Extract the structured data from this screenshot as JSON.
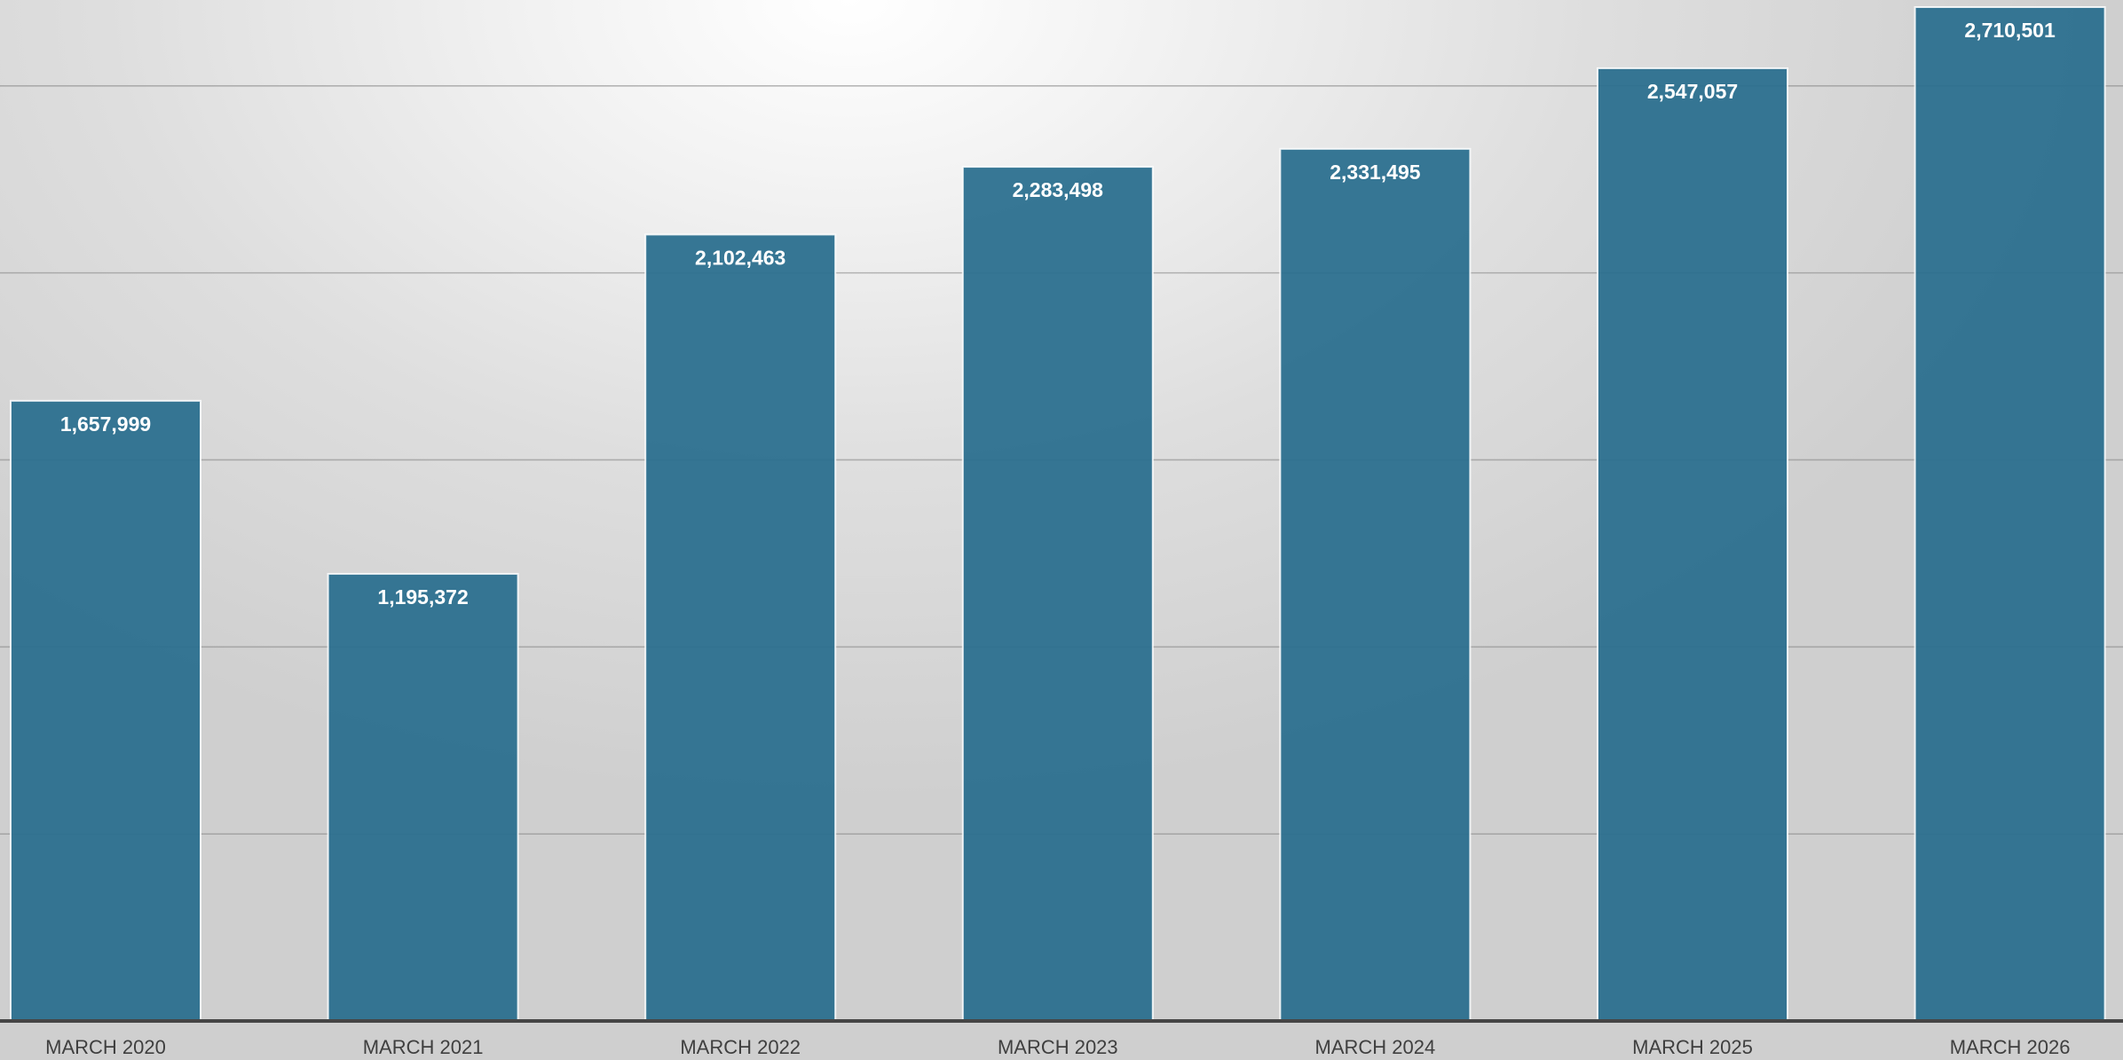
{
  "chart_data": {
    "type": "bar",
    "title": "",
    "xlabel": "",
    "ylabel": "",
    "categories": [
      "MARCH 2020",
      "MARCH 2021",
      "MARCH 2022",
      "MARCH 2023",
      "MARCH 2024",
      "MARCH 2025",
      "MARCH 2026"
    ],
    "values": [
      1657999,
      1195372,
      2102463,
      2283498,
      2331495,
      2547057,
      2710501
    ],
    "data_labels": [
      "1,657,999",
      "1,195,372",
      "2,102,463",
      "2,283,498",
      "2,331,495",
      "2,547,057",
      "2,710,501"
    ],
    "ylim": [
      0,
      2710501
    ],
    "y_gridlines": [
      500000,
      1000000,
      1500000,
      2000000,
      2500000
    ],
    "y_tick_labels_visible": false,
    "grid": true,
    "legend": "none",
    "colors": {
      "bar": "#2a6f8e",
      "bar_border": "#ffffff",
      "gridline": "#8a8a8a",
      "baseline": "#454545",
      "data_label": "#ffffff",
      "tick_label": "#3f3f3f"
    }
  }
}
